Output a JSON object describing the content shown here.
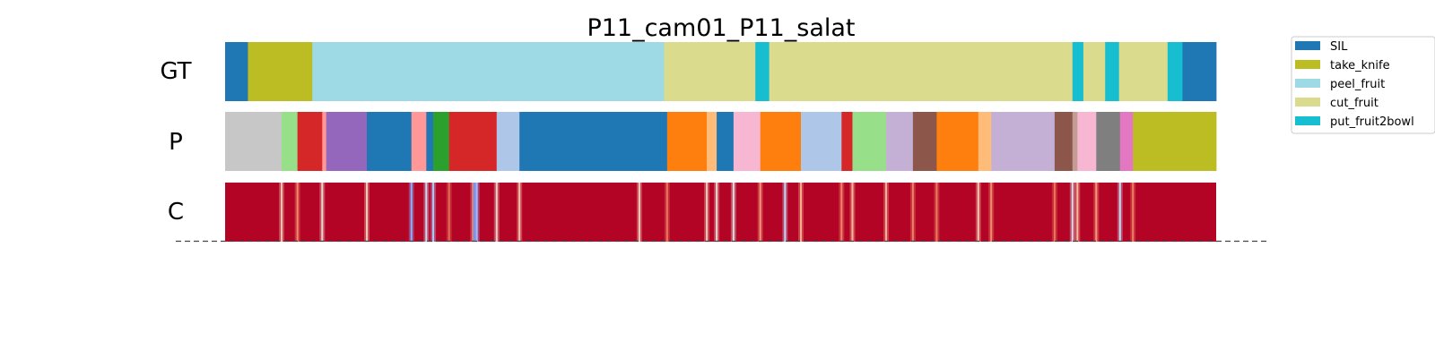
{
  "chart_data": {
    "type": "segmentation_timeline",
    "title": "P11_cam01_P11_salat",
    "x_range": [
      0,
      1000
    ],
    "rows": [
      {
        "label": "GT",
        "segments": [
          {
            "start": 0,
            "end": 23,
            "color": "#1f77b4"
          },
          {
            "start": 23,
            "end": 88,
            "color": "#bcbd22"
          },
          {
            "start": 88,
            "end": 443,
            "color": "#9edae5"
          },
          {
            "start": 443,
            "end": 535,
            "color": "#dbdb8d"
          },
          {
            "start": 535,
            "end": 549,
            "color": "#17becf"
          },
          {
            "start": 549,
            "end": 855,
            "color": "#dbdb8d"
          },
          {
            "start": 855,
            "end": 866,
            "color": "#17becf"
          },
          {
            "start": 866,
            "end": 888,
            "color": "#dbdb8d"
          },
          {
            "start": 888,
            "end": 902,
            "color": "#17becf"
          },
          {
            "start": 902,
            "end": 951,
            "color": "#dbdb8d"
          },
          {
            "start": 951,
            "end": 966,
            "color": "#17becf"
          },
          {
            "start": 966,
            "end": 1000,
            "color": "#1f77b4"
          }
        ]
      },
      {
        "label": "P",
        "segments": [
          {
            "start": 0,
            "end": 57,
            "color": "#c7c7c7"
          },
          {
            "start": 57,
            "end": 73,
            "color": "#98df8a"
          },
          {
            "start": 73,
            "end": 98,
            "color": "#d62728"
          },
          {
            "start": 98,
            "end": 102,
            "color": "#ff9896"
          },
          {
            "start": 102,
            "end": 143,
            "color": "#9467bd"
          },
          {
            "start": 143,
            "end": 188,
            "color": "#1f77b4"
          },
          {
            "start": 188,
            "end": 203,
            "color": "#ff9896"
          },
          {
            "start": 203,
            "end": 210,
            "color": "#1f77b4"
          },
          {
            "start": 210,
            "end": 226,
            "color": "#2ca02c"
          },
          {
            "start": 226,
            "end": 274,
            "color": "#d62728"
          },
          {
            "start": 274,
            "end": 297,
            "color": "#aec7e8"
          },
          {
            "start": 297,
            "end": 446,
            "color": "#1f77b4"
          },
          {
            "start": 446,
            "end": 486,
            "color": "#ff7f0e"
          },
          {
            "start": 486,
            "end": 496,
            "color": "#ffbb78"
          },
          {
            "start": 496,
            "end": 513,
            "color": "#1f77b4"
          },
          {
            "start": 513,
            "end": 540,
            "color": "#f7b6d2"
          },
          {
            "start": 540,
            "end": 581,
            "color": "#ff7f0e"
          },
          {
            "start": 581,
            "end": 622,
            "color": "#aec7e8"
          },
          {
            "start": 622,
            "end": 633,
            "color": "#d62728"
          },
          {
            "start": 633,
            "end": 667,
            "color": "#98df8a"
          },
          {
            "start": 667,
            "end": 694,
            "color": "#c5b0d5"
          },
          {
            "start": 694,
            "end": 718,
            "color": "#8c564b"
          },
          {
            "start": 718,
            "end": 760,
            "color": "#ff7f0e"
          },
          {
            "start": 760,
            "end": 773,
            "color": "#ffbb78"
          },
          {
            "start": 773,
            "end": 837,
            "color": "#c5b0d5"
          },
          {
            "start": 837,
            "end": 855,
            "color": "#8c564b"
          },
          {
            "start": 855,
            "end": 860,
            "color": "#c49c94"
          },
          {
            "start": 860,
            "end": 879,
            "color": "#f7b6d2"
          },
          {
            "start": 879,
            "end": 903,
            "color": "#7f7f7f"
          },
          {
            "start": 903,
            "end": 916,
            "color": "#e377c2"
          },
          {
            "start": 916,
            "end": 1000,
            "color": "#bcbd22"
          }
        ]
      },
      {
        "label": "C",
        "base_color": "#b40426",
        "spikes": [
          {
            "x": 57,
            "color": "#f4c6af"
          },
          {
            "x": 73,
            "color": "#f08a6c"
          },
          {
            "x": 98,
            "color": "#e9d5cb"
          },
          {
            "x": 143,
            "color": "#f2cbb7"
          },
          {
            "x": 188,
            "color": "#8db0fe"
          },
          {
            "x": 203,
            "color": "#c9d7f0"
          },
          {
            "x": 210,
            "color": "#aec9fc"
          },
          {
            "x": 226,
            "color": "#e36c55"
          },
          {
            "x": 250,
            "color": "#f4987a"
          },
          {
            "x": 252,
            "color": "#6788ee"
          },
          {
            "x": 254,
            "color": "#9ebeff"
          },
          {
            "x": 274,
            "color": "#ead4c8"
          },
          {
            "x": 297,
            "color": "#f5c0a7"
          },
          {
            "x": 418,
            "color": "#f2cbb7"
          },
          {
            "x": 446,
            "color": "#e9785d"
          },
          {
            "x": 486,
            "color": "#f2cbb7"
          },
          {
            "x": 496,
            "color": "#e7d7ce"
          },
          {
            "x": 513,
            "color": "#dcdddd"
          },
          {
            "x": 540,
            "color": "#f39778"
          },
          {
            "x": 565,
            "color": "#c3d5f4"
          },
          {
            "x": 581,
            "color": "#f7ac8e"
          },
          {
            "x": 622,
            "color": "#ee8468"
          },
          {
            "x": 633,
            "color": "#f7b89c"
          },
          {
            "x": 667,
            "color": "#f7b396"
          },
          {
            "x": 694,
            "color": "#ec8165"
          },
          {
            "x": 718,
            "color": "#e97a5f"
          },
          {
            "x": 760,
            "color": "#f4c5ad"
          },
          {
            "x": 773,
            "color": "#f08b6e"
          },
          {
            "x": 837,
            "color": "#e9785d"
          },
          {
            "x": 855,
            "color": "#d4dbe6"
          },
          {
            "x": 860,
            "color": "#f7ba9f"
          },
          {
            "x": 879,
            "color": "#f4987a"
          },
          {
            "x": 903,
            "color": "#c9d7f0"
          },
          {
            "x": 916,
            "color": "#ec7f63"
          }
        ]
      }
    ],
    "legend": {
      "placement": "top-right",
      "entries": [
        {
          "name": "SIL",
          "color": "#1f77b4"
        },
        {
          "name": "take_knife",
          "color": "#bcbd22"
        },
        {
          "name": "peel_fruit",
          "color": "#9edae5"
        },
        {
          "name": "cut_fruit",
          "color": "#dbdb8d"
        },
        {
          "name": "put_fruit2bowl",
          "color": "#17becf"
        }
      ]
    },
    "baseline": "dashed"
  }
}
